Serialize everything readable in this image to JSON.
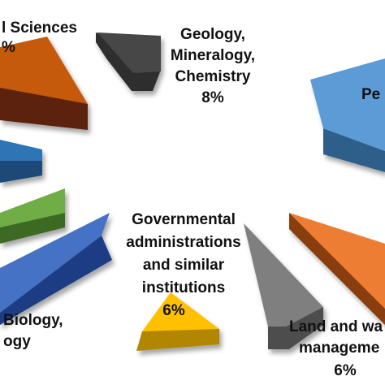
{
  "chart_data": {
    "type": "pie",
    "style": "exploded 3D pie, cropped view",
    "slices": [
      {
        "label_lines": [
          "Geology,",
          "Mineralogy,",
          "Chemistry"
        ],
        "value_text": "8%",
        "value": 8,
        "color": "#474747"
      },
      {
        "label_lines": [
          "Pe"
        ],
        "value_text": "",
        "value": null,
        "color": "#5b9bd5"
      },
      {
        "label_lines": [
          "Land and wa",
          "manageme"
        ],
        "value_text": "6%",
        "value": 6,
        "color": "#7f7f7f"
      },
      {
        "label_lines": [],
        "value_text": "",
        "value": null,
        "color": "#ed7d31"
      },
      {
        "label_lines": [
          "Governmental",
          "administrations",
          "and similar",
          "institutions"
        ],
        "value_text": "6%",
        "value": 6,
        "color": "#ffc000"
      },
      {
        "label_lines": [
          "Biology,",
          "ogy"
        ],
        "value_text": "",
        "value": null,
        "color": "#4472c4"
      },
      {
        "label_lines": [],
        "value_text": "",
        "value": null,
        "color": "#70ad47"
      },
      {
        "label_lines": [],
        "value_text": "",
        "value": null,
        "color": "#2e75b6"
      },
      {
        "label_lines": [
          "l Sciences"
        ],
        "value_text": "%",
        "value": null,
        "color": "#c55a11"
      }
    ]
  }
}
